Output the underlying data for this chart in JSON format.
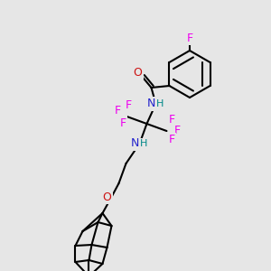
{
  "bg_color": "#e6e6e6",
  "bond_color": "#000000",
  "bond_width": 1.5,
  "atom_colors": {
    "F": "#ee00ee",
    "N": "#2222cc",
    "O": "#cc1111",
    "H": "#008888",
    "C": "#000000"
  }
}
